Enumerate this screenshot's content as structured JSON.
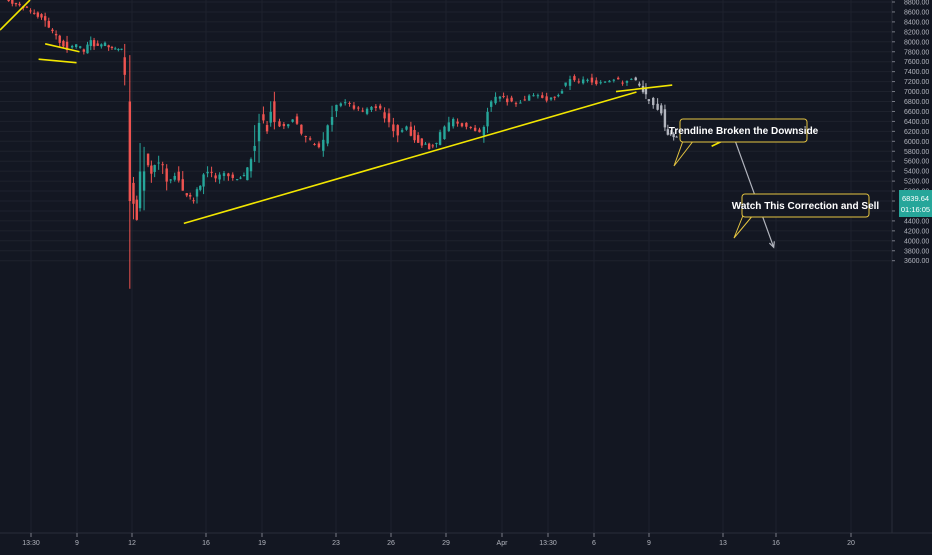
{
  "chart_data": {
    "type": "candlestick",
    "title": "",
    "xlabel": "",
    "ylabel": "",
    "ylim": [
      3500,
      8850
    ],
    "y_ticks": [
      3600,
      3800,
      4000,
      4200,
      4400,
      4600,
      4800,
      5000,
      5200,
      5400,
      5600,
      5800,
      6000,
      6200,
      6400,
      6600,
      6800,
      7000,
      7200,
      7400,
      7600,
      7800,
      8000,
      8200,
      8400,
      8600,
      8800
    ],
    "y_tick_labels": [
      "3600.00",
      "3800.00",
      "4000.00",
      "4200.00",
      "4400.00",
      "4600.00",
      "4800.00",
      "5000.00",
      "5200.00",
      "5400.00",
      "5600.00",
      "5800.00",
      "6000.00",
      "6200.00",
      "6400.00",
      "6600.00",
      "6800.00",
      "7000.00",
      "7200.00",
      "7400.00",
      "7600.00",
      "7800.00",
      "8000.00",
      "8200.00",
      "8400.00",
      "8600.00",
      "8800.00"
    ],
    "x_ticks": [
      "13:30",
      "9",
      "12",
      "16",
      "19",
      "23",
      "26",
      "29",
      "Apr",
      "13:30",
      "6",
      "9",
      "13",
      "16",
      "20"
    ],
    "grid": true,
    "current_price": {
      "value": 6839.64,
      "label": "6839.64",
      "countdown": "01:16:05"
    },
    "price_path": [
      [
        0,
        8900
      ],
      [
        3,
        8700
      ],
      [
        5.5,
        8500
      ],
      [
        7,
        8180
      ],
      [
        8.5,
        7960
      ],
      [
        9.2,
        7860
      ],
      [
        10.3,
        7920
      ],
      [
        11.3,
        7830
      ],
      [
        12.2,
        8020
      ],
      [
        13.2,
        7890
      ],
      [
        14.2,
        7950
      ],
      [
        15.1,
        7860
      ],
      [
        16.4,
        7840
      ],
      [
        17.1,
        7480
      ],
      [
        17.6,
        5100
      ],
      [
        18.5,
        4400
      ],
      [
        19.6,
        5700
      ],
      [
        20.5,
        5350
      ],
      [
        21.6,
        5620
      ],
      [
        22.7,
        5200
      ],
      [
        23.8,
        5300
      ],
      [
        24.9,
        5000
      ],
      [
        26.3,
        4800
      ],
      [
        27.2,
        5150
      ],
      [
        28.3,
        5420
      ],
      [
        29.4,
        5250
      ],
      [
        30.6,
        5380
      ],
      [
        31.8,
        5250
      ],
      [
        33.2,
        5300
      ],
      [
        34.2,
        5560
      ],
      [
        35.4,
        6500
      ],
      [
        36.4,
        6200
      ],
      [
        36.9,
        6650
      ],
      [
        37.6,
        6380
      ],
      [
        38.8,
        6290
      ],
      [
        40.0,
        6430
      ],
      [
        41.2,
        6150
      ],
      [
        42.4,
        5980
      ],
      [
        43.6,
        5880
      ],
      [
        44.8,
        6250
      ],
      [
        46.0,
        6720
      ],
      [
        47.2,
        6780
      ],
      [
        48.4,
        6660
      ],
      [
        49.6,
        6600
      ],
      [
        50.8,
        6720
      ],
      [
        52.0,
        6650
      ],
      [
        53.2,
        6400
      ],
      [
        54.4,
        6160
      ],
      [
        55.6,
        6260
      ],
      [
        56.6,
        6080
      ],
      [
        57.6,
        5960
      ],
      [
        58.6,
        5880
      ],
      [
        59.6,
        6000
      ],
      [
        60.8,
        6250
      ],
      [
        62.0,
        6420
      ],
      [
        63.2,
        6330
      ],
      [
        64.4,
        6240
      ],
      [
        65.6,
        6160
      ],
      [
        66.6,
        6650
      ],
      [
        67.8,
        6840
      ],
      [
        68.8,
        6920
      ],
      [
        70.0,
        6740
      ],
      [
        71.2,
        6800
      ],
      [
        72.4,
        6900
      ],
      [
        73.6,
        6940
      ],
      [
        74.8,
        6850
      ],
      [
        75.8,
        6900
      ],
      [
        76.8,
        7050
      ],
      [
        78.0,
        7280
      ],
      [
        79.2,
        7200
      ],
      [
        80.4,
        7260
      ],
      [
        81.6,
        7160
      ],
      [
        82.8,
        7190
      ],
      [
        84.0,
        7250
      ],
      [
        85.2,
        7170
      ],
      [
        86.4,
        7240
      ],
      [
        87.4,
        7110
      ],
      [
        88.2,
        6890
      ],
      [
        89.4,
        6760
      ],
      [
        90.4,
        6560
      ],
      [
        91.2,
        6150
      ],
      [
        92.0,
        6070
      ],
      [
        93.2,
        6120
      ],
      [
        94.4,
        6100
      ],
      [
        95.6,
        6210
      ],
      [
        96.4,
        6180
      ],
      [
        97.2,
        6380
      ],
      [
        98.2,
        6420
      ],
      [
        99.2,
        6300
      ]
    ],
    "future_path_start_index": 86,
    "projection": {
      "from": [
        99.6,
        6180
      ],
      "to": [
        105.3,
        3870
      ]
    },
    "trendlines": [
      {
        "from": [
          5.5,
          7960
        ],
        "to": [
          10.2,
          7800
        ]
      },
      {
        "from": [
          4.6,
          7650
        ],
        "to": [
          9.8,
          7580
        ]
      },
      {
        "from": [
          24.5,
          4350
        ],
        "to": [
          86.5,
          6990
        ]
      },
      {
        "from": [
          83.7,
          7000
        ],
        "to": [
          91.4,
          7130
        ]
      },
      {
        "from": [
          96.8,
          5900
        ],
        "to": [
          101.7,
          6250
        ]
      }
    ],
    "annotations": [
      {
        "text": "Trendline Broken the Downside"
      },
      {
        "text": "Watch This Correction and Sell"
      }
    ],
    "colors": {
      "background": "#131722",
      "up": "#26a69a",
      "down": "#ef5350",
      "forecast": "#b2b5be",
      "trendline": "#f2e600",
      "arrow": "#b2b5be",
      "price_tag": "#26a69a"
    }
  }
}
